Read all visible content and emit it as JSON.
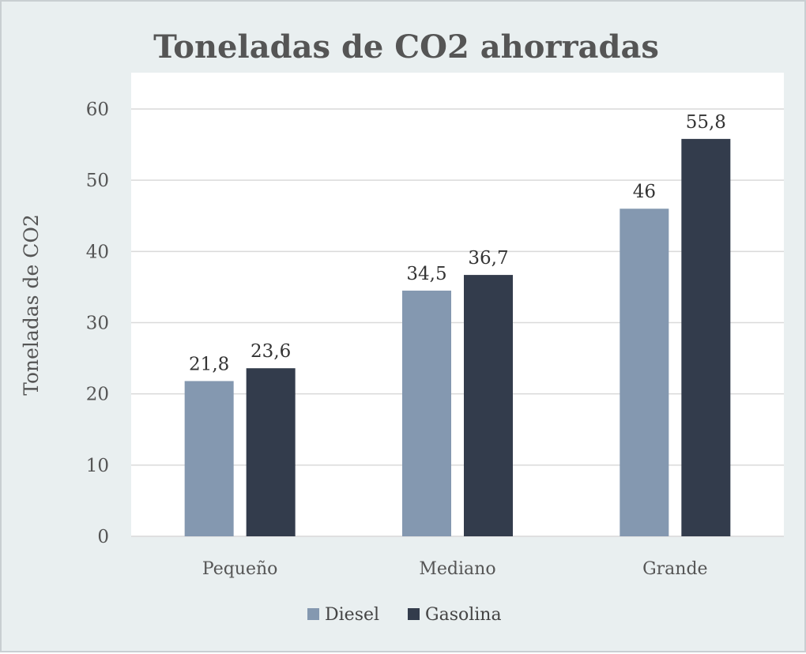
{
  "chart_data": {
    "type": "bar",
    "title": "Toneladas de CO2 ahorradas",
    "xlabel": "",
    "ylabel": "Toneladas de CO2",
    "categories": [
      "Pequeño",
      "Mediano",
      "Grande"
    ],
    "series": [
      {
        "name": "Diesel",
        "values": [
          21.8,
          34.5,
          46
        ],
        "labels": [
          "21,8",
          "34,5",
          "46"
        ],
        "color": "#8498b0"
      },
      {
        "name": "Gasolina",
        "values": [
          23.6,
          36.7,
          55.8
        ],
        "labels": [
          "23,6",
          "36,7",
          "55,8"
        ],
        "color": "#333c4c"
      }
    ],
    "ylim": [
      0,
      60
    ],
    "yticks": [
      0,
      10,
      20,
      30,
      40,
      50,
      60
    ],
    "grid": true,
    "legend_position": "bottom",
    "colors": {
      "background": "#e9eff0",
      "plot_background": "#ffffff",
      "gridline": "#d9d9d9",
      "text": "#555555"
    }
  }
}
